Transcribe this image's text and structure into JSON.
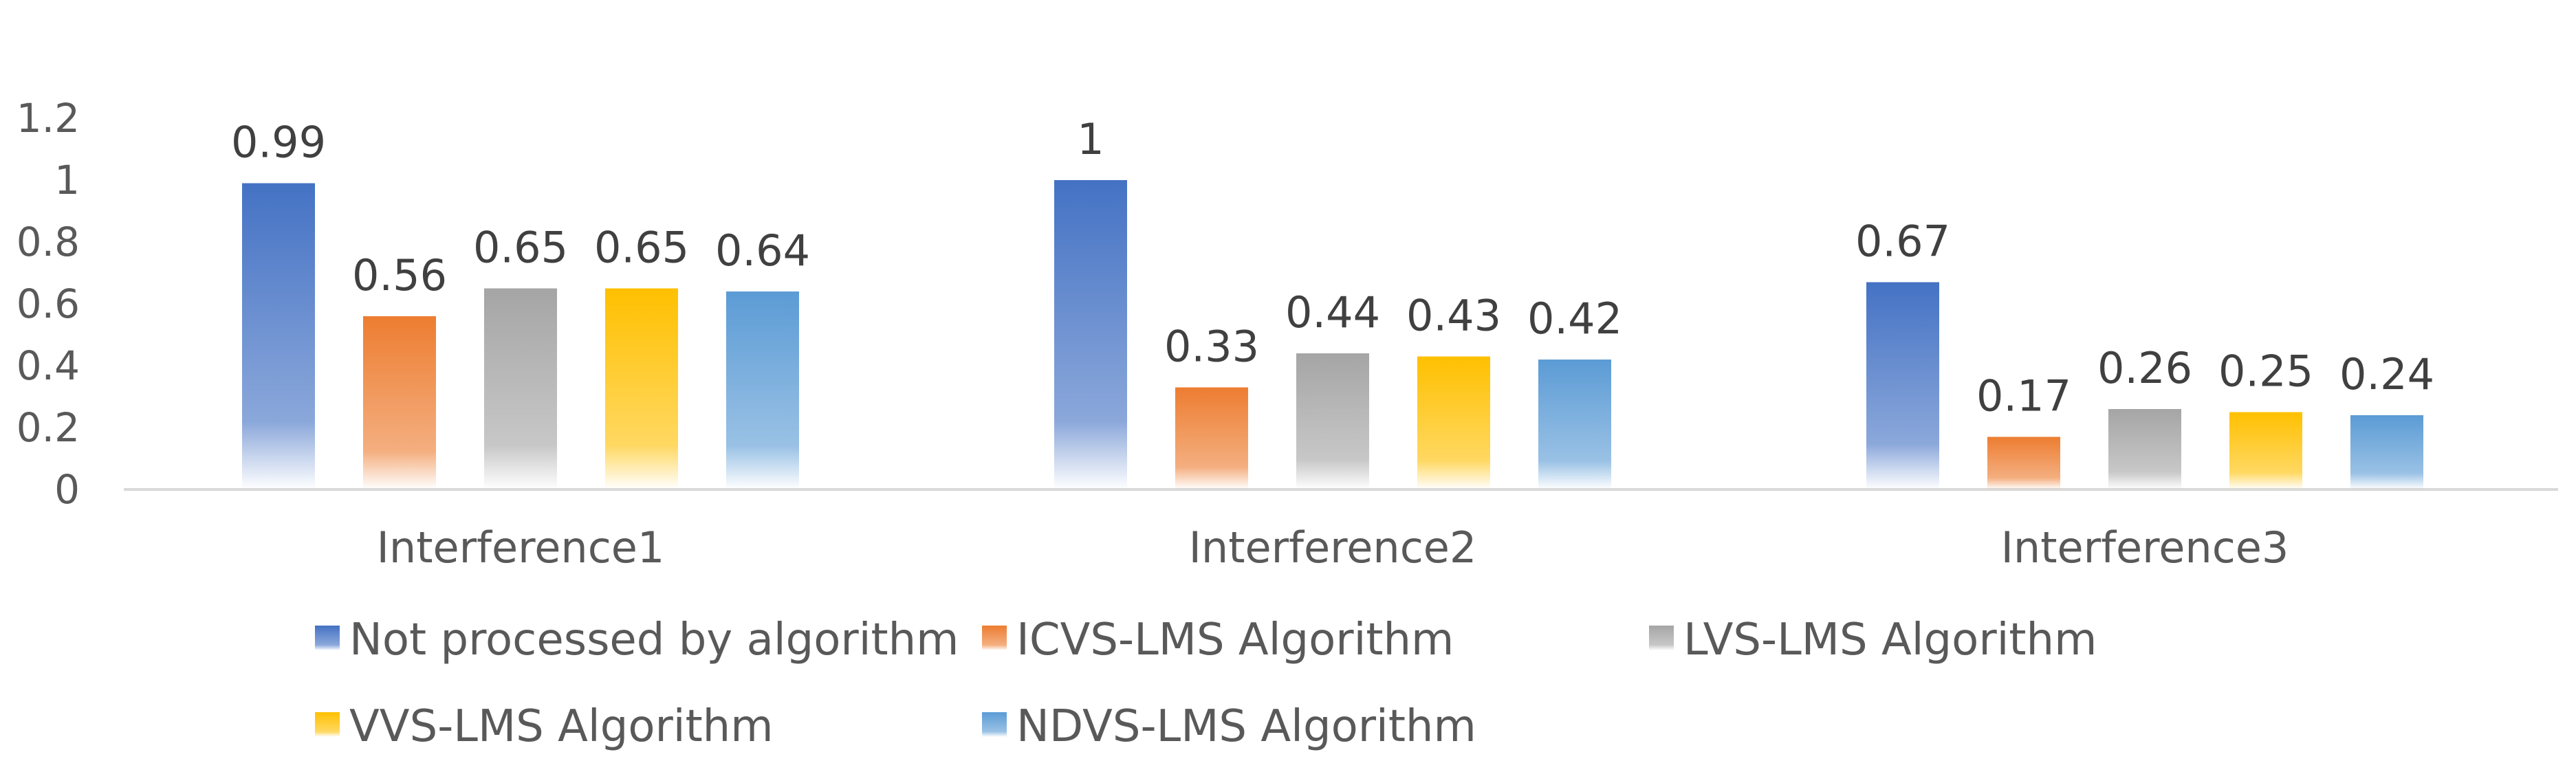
{
  "chart_data": {
    "type": "bar",
    "title": "",
    "xlabel": "",
    "ylabel": "",
    "ylim": [
      0,
      1.2
    ],
    "yticks": [
      "0",
      "0.2",
      "0.4",
      "0.6",
      "0.8",
      "1",
      "1.2"
    ],
    "grid": false,
    "legend_position": "bottom",
    "categories": [
      "Interference1",
      "Interference2",
      "Interference3"
    ],
    "series": [
      {
        "name": "Not processed by algorithm",
        "color": "#4472C4",
        "values": [
          0.99,
          1,
          0.67
        ],
        "labels": [
          "0.99",
          "1",
          "0.67"
        ]
      },
      {
        "name": "ICVS-LMS Algorithm",
        "color": "#ED7D31",
        "values": [
          0.56,
          0.33,
          0.17
        ],
        "labels": [
          "0.56",
          "0.33",
          "0.17"
        ]
      },
      {
        "name": "LVS-LMS Algorithm",
        "color": "#A5A5A5",
        "values": [
          0.65,
          0.44,
          0.26
        ],
        "labels": [
          "0.65",
          "0.44",
          "0.26"
        ]
      },
      {
        "name": "VVS-LMS Algorithm",
        "color": "#FFC000",
        "values": [
          0.65,
          0.43,
          0.25
        ],
        "labels": [
          "0.65",
          "0.43",
          "0.25"
        ]
      },
      {
        "name": "NDVS-LMS Algorithm",
        "color": "#5B9BD5",
        "values": [
          0.64,
          0.42,
          0.24
        ],
        "labels": [
          "0.64",
          "0.42",
          "0.24"
        ]
      }
    ]
  }
}
